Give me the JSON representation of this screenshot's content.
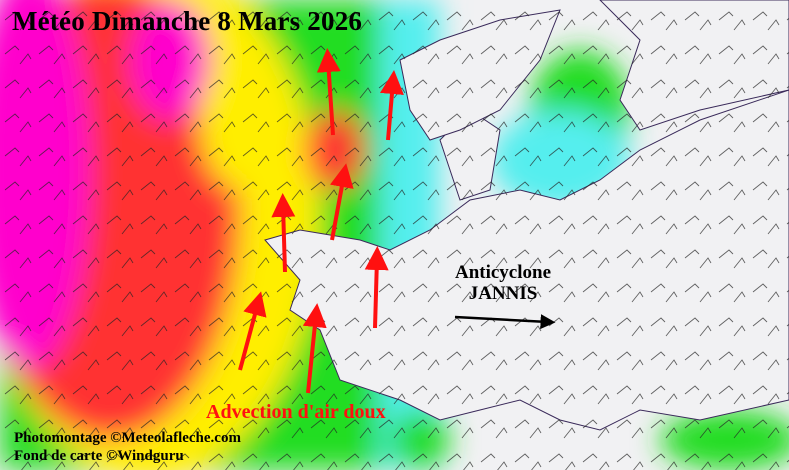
{
  "title": "Météo Dimanche 8 Mars 2026",
  "annotations": {
    "anticyclone_line1": "Anticyclone",
    "anticyclone_line2": "JANNIS",
    "advection": "Advection d'air doux"
  },
  "credits": {
    "photomontage": "Photomontage ©Meteolafleche.com",
    "basemap": "Fond de carte ©Windguru"
  },
  "colors": {
    "advection_arrows": "#ff1010",
    "anticyclone_arrow": "#000000",
    "strong_wind": "#ff00cc",
    "high_wind": "#ff3030",
    "moderate_wind": "#ffee00",
    "light_wind": "#22dd22",
    "weak_wind": "#55eeee",
    "land": "#f1f1f3"
  }
}
